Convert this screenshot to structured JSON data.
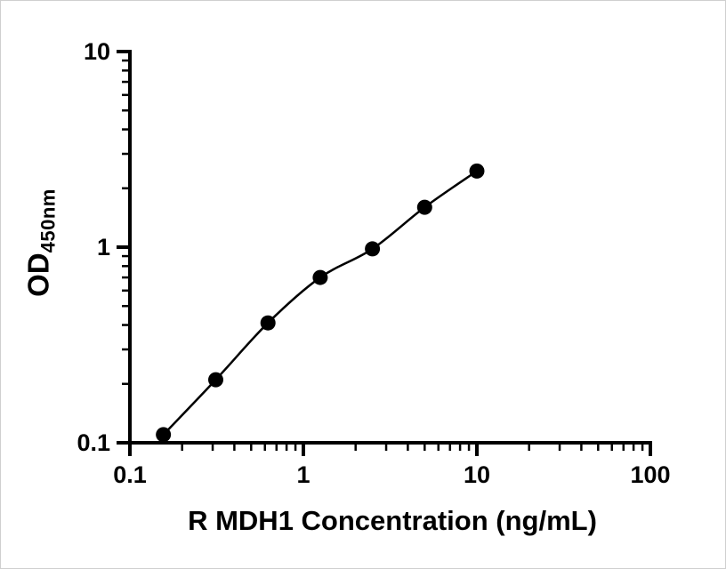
{
  "chart_data": {
    "type": "scatter",
    "subtype": "standard-curve-with-fitted-line",
    "title": "",
    "xlabel": "R MDH1 Concentration (ng/mL)",
    "ylabel_main": "OD",
    "ylabel_sub": "450nm",
    "x_scale": "log10",
    "y_scale": "log10",
    "xlim": [
      0.1,
      100
    ],
    "ylim": [
      0.1,
      10
    ],
    "x_ticks": [
      {
        "value": 0.1,
        "label": "0.1"
      },
      {
        "value": 1,
        "label": "1"
      },
      {
        "value": 10,
        "label": "10"
      },
      {
        "value": 100,
        "label": "100"
      }
    ],
    "y_ticks": [
      {
        "value": 0.1,
        "label": "0.1"
      },
      {
        "value": 1,
        "label": "1"
      },
      {
        "value": 10,
        "label": "10"
      }
    ],
    "points": [
      {
        "x": 0.156,
        "y": 0.11
      },
      {
        "x": 0.3125,
        "y": 0.21
      },
      {
        "x": 0.625,
        "y": 0.41
      },
      {
        "x": 1.25,
        "y": 0.7
      },
      {
        "x": 2.5,
        "y": 0.98
      },
      {
        "x": 5,
        "y": 1.6
      },
      {
        "x": 10,
        "y": 2.45
      }
    ],
    "grid": false,
    "legend": false,
    "axis_color": "#000000",
    "text_color": "#000000",
    "marker_color": "#000000",
    "line_color": "#000000",
    "background": "#ffffff"
  }
}
